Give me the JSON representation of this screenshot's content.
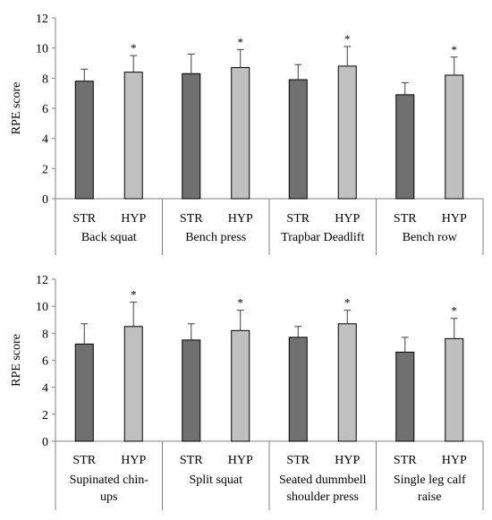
{
  "chart_data": [
    {
      "type": "bar",
      "ylabel": "RPE score",
      "ylim": [
        0,
        12
      ],
      "yticks": [
        0,
        2,
        4,
        6,
        8,
        10,
        12
      ],
      "groups": [
        {
          "name": "Back squat",
          "bars": [
            {
              "label": "STR",
              "value": 7.8,
              "error": 0.8,
              "sig": ""
            },
            {
              "label": "HYP",
              "value": 8.4,
              "error": 1.1,
              "sig": "*"
            }
          ]
        },
        {
          "name": "Bench press",
          "bars": [
            {
              "label": "STR",
              "value": 8.3,
              "error": 1.3,
              "sig": ""
            },
            {
              "label": "HYP",
              "value": 8.7,
              "error": 1.2,
              "sig": "*"
            }
          ]
        },
        {
          "name": "Trapbar Deadlift",
          "bars": [
            {
              "label": "STR",
              "value": 7.9,
              "error": 1.0,
              "sig": ""
            },
            {
              "label": "HYP",
              "value": 8.8,
              "error": 1.3,
              "sig": "*"
            }
          ]
        },
        {
          "name": "Bench row",
          "bars": [
            {
              "label": "STR",
              "value": 6.9,
              "error": 0.8,
              "sig": ""
            },
            {
              "label": "HYP",
              "value": 8.2,
              "error": 1.2,
              "sig": "*"
            }
          ]
        }
      ]
    },
    {
      "type": "bar",
      "ylabel": "RPE score",
      "ylim": [
        0,
        12
      ],
      "yticks": [
        0,
        2,
        4,
        6,
        8,
        10,
        12
      ],
      "groups": [
        {
          "name": "Supinated chin-ups",
          "bars": [
            {
              "label": "STR",
              "value": 7.2,
              "error": 1.5,
              "sig": ""
            },
            {
              "label": "HYP",
              "value": 8.5,
              "error": 1.8,
              "sig": "*"
            }
          ]
        },
        {
          "name": "Split squat",
          "bars": [
            {
              "label": "STR",
              "value": 7.5,
              "error": 1.2,
              "sig": ""
            },
            {
              "label": "HYP",
              "value": 8.2,
              "error": 1.5,
              "sig": "*"
            }
          ]
        },
        {
          "name": "Seated dummbell shoulder press",
          "bars": [
            {
              "label": "STR",
              "value": 7.7,
              "error": 0.8,
              "sig": ""
            },
            {
              "label": "HYP",
              "value": 8.7,
              "error": 1.0,
              "sig": "*"
            }
          ]
        },
        {
          "name": "Single leg calf raise",
          "bars": [
            {
              "label": "STR",
              "value": 6.6,
              "error": 1.1,
              "sig": ""
            },
            {
              "label": "HYP",
              "value": 7.6,
              "error": 1.5,
              "sig": "*"
            }
          ]
        }
      ]
    }
  ],
  "colors": {
    "STR": "#707070",
    "HYP": "#c0c0c0",
    "axis": "#808080",
    "outline": "#000000"
  }
}
